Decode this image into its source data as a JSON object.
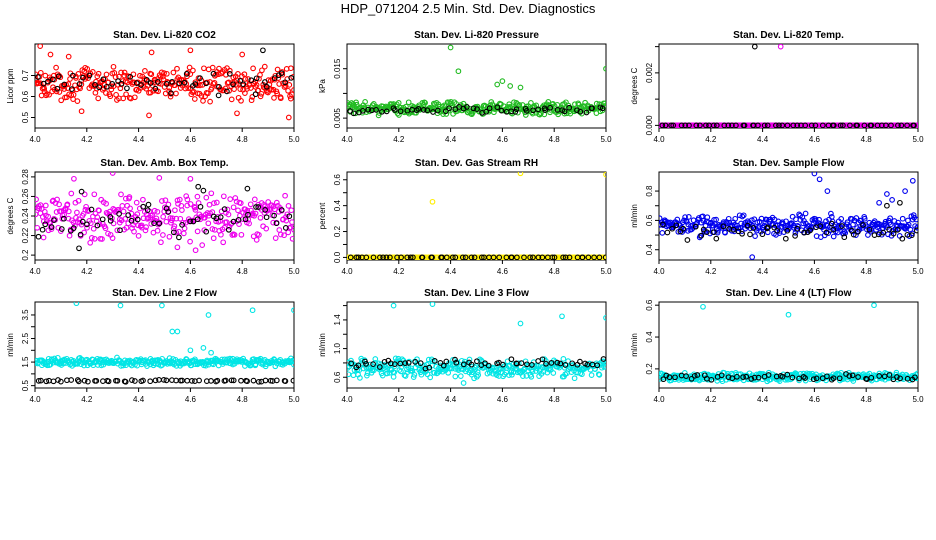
{
  "page_title": "HDP_071204  2.5 Min. Std. Dev. Diagnostics",
  "chart_data": [
    {
      "type": "scatter",
      "title": "Stan. Dev. Li-820 CO2",
      "xlabel": "",
      "ylabel": "Licor ppm",
      "xlim": [
        4.0,
        5.0
      ],
      "ylim": [
        0.45,
        0.85
      ],
      "xticks": [
        4.0,
        4.2,
        4.4,
        4.6,
        4.8,
        5.0
      ],
      "yticks": [
        0.5,
        0.6,
        0.7
      ],
      "colors": {
        "main": "#ff0000",
        "secondary": "#000000"
      },
      "series": [
        {
          "name": "main",
          "color": "#ff0000",
          "band": [
            0.57,
            0.75
          ],
          "n": 330,
          "x": [
            4.02,
            4.06,
            4.13,
            4.45,
            4.6,
            4.8,
            4.98,
            4.18,
            4.44,
            4.78
          ],
          "y": [
            0.84,
            0.8,
            0.79,
            0.81,
            0.82,
            0.8,
            0.5,
            0.53,
            0.51,
            0.52
          ]
        },
        {
          "name": "secondary",
          "color": "#000000",
          "band": [
            0.6,
            0.72
          ],
          "n": 55,
          "x": [
            4.88
          ],
          "y": [
            0.82
          ]
        }
      ]
    },
    {
      "type": "scatter",
      "title": "Stan. Dev. Li-820 Pressure",
      "xlabel": "",
      "ylabel": "kPa",
      "xlim": [
        4.0,
        5.0
      ],
      "ylim": [
        0.003,
        0.02
      ],
      "xticks": [
        4.0,
        4.2,
        4.4,
        4.6,
        4.8,
        5.0
      ],
      "yticks": [
        0.005,
        0.01,
        0.015
      ],
      "yticklabels": [
        "0.005",
        "",
        "0.015"
      ],
      "colors": {
        "main": "#22bb22",
        "secondary": "#000000"
      },
      "series": [
        {
          "name": "main",
          "color": "#22bb22",
          "band": [
            0.0055,
            0.0085
          ],
          "n": 330,
          "x": [
            4.4,
            4.43,
            4.6,
            4.58,
            5.0,
            4.63,
            4.67
          ],
          "y": [
            0.0193,
            0.0145,
            0.0125,
            0.0118,
            0.015,
            0.0115,
            0.0112
          ]
        },
        {
          "name": "secondary",
          "color": "#000000",
          "band": [
            0.0058,
            0.0075
          ],
          "n": 55,
          "x": [],
          "y": []
        }
      ]
    },
    {
      "type": "scatter",
      "title": "Stan. Dev. Li-820 Temp.",
      "xlabel": "",
      "ylabel": "degrees C",
      "xlim": [
        4.0,
        5.0
      ],
      "ylim": [
        -0.0001,
        0.0031
      ],
      "xticks": [
        4.0,
        4.2,
        4.4,
        4.6,
        4.8,
        5.0
      ],
      "yticks": [
        0.0,
        0.001,
        0.002,
        0.003
      ],
      "yticklabels": [
        "0.000",
        "",
        "0.002",
        ""
      ],
      "colors": {
        "main": "#ee00ee",
        "secondary": "#000000"
      },
      "series": [
        {
          "name": "main",
          "color": "#ee00ee",
          "band": [
            0.0,
            0.0
          ],
          "n": 330,
          "x": [
            4.47
          ],
          "y": [
            0.003
          ]
        },
        {
          "name": "secondary",
          "color": "#000000",
          "band": [
            0.0,
            0.0
          ],
          "n": 55,
          "x": [
            4.37
          ],
          "y": [
            0.003
          ]
        }
      ]
    },
    {
      "type": "scatter",
      "title": "Stan. Dev. Amb. Box Temp.",
      "xlabel": "",
      "ylabel": "degrees C",
      "xlim": [
        4.0,
        5.0
      ],
      "ylim": [
        0.195,
        0.285
      ],
      "xticks": [
        4.0,
        4.2,
        4.4,
        4.6,
        4.8,
        5.0
      ],
      "yticks": [
        0.2,
        0.22,
        0.24,
        0.26,
        0.28
      ],
      "colors": {
        "main": "#ee00ee",
        "secondary": "#000000"
      },
      "series": [
        {
          "name": "main",
          "color": "#ee00ee",
          "band": [
            0.21,
            0.265
          ],
          "n": 330,
          "x": [
            4.3,
            4.15,
            4.48,
            4.6,
            4.62,
            4.55
          ],
          "y": [
            0.284,
            0.278,
            0.279,
            0.278,
            0.205,
            0.208
          ]
        },
        {
          "name": "secondary",
          "color": "#000000",
          "band": [
            0.215,
            0.255
          ],
          "n": 55,
          "x": [
            4.63,
            4.82,
            4.65,
            4.17,
            4.18
          ],
          "y": [
            0.27,
            0.268,
            0.266,
            0.207,
            0.265
          ]
        }
      ]
    },
    {
      "type": "scatter",
      "title": "Stan. Dev. Gas Stream RH",
      "xlabel": "",
      "ylabel": "percent",
      "xlim": [
        4.0,
        5.0
      ],
      "ylim": [
        -0.02,
        0.66
      ],
      "xticks": [
        4.0,
        4.2,
        4.4,
        4.6,
        4.8,
        5.0
      ],
      "yticks": [
        0.0,
        0.1,
        0.2,
        0.3,
        0.4,
        0.5,
        0.6
      ],
      "yticklabels": [
        "0.0",
        "",
        "0.2",
        "",
        "0.4",
        "",
        "0.6"
      ],
      "colors": {
        "main": "#ffee00",
        "secondary": "#000000"
      },
      "series": [
        {
          "name": "main",
          "color": "#ffee00",
          "band": [
            0.0,
            0.0
          ],
          "n": 200,
          "x": [
            4.33,
            4.67,
            5.0,
            4.01
          ],
          "y": [
            0.43,
            0.65,
            0.64,
            0.0
          ]
        },
        {
          "name": "secondary",
          "color": "#000000",
          "band": [
            0.0,
            0.0
          ],
          "n": 55,
          "x": [],
          "y": []
        }
      ]
    },
    {
      "type": "scatter",
      "title": "Stan. Dev. Sample Flow",
      "xlabel": "",
      "ylabel": "ml/min",
      "xlim": [
        4.0,
        5.0
      ],
      "ylim": [
        0.33,
        0.93
      ],
      "xticks": [
        4.0,
        4.2,
        4.4,
        4.6,
        4.8,
        5.0
      ],
      "yticks": [
        0.4,
        0.5,
        0.6,
        0.7,
        0.8
      ],
      "yticklabels": [
        "0.4",
        "",
        "0.6",
        "",
        "0.8"
      ],
      "colors": {
        "main": "#0000ee",
        "secondary": "#000000"
      },
      "series": [
        {
          "name": "main",
          "color": "#0000ee",
          "band": [
            0.48,
            0.65
          ],
          "n": 330,
          "x": [
            4.6,
            4.62,
            4.98,
            4.95,
            4.85,
            4.88,
            4.9,
            4.36,
            4.65
          ],
          "y": [
            0.92,
            0.88,
            0.87,
            0.8,
            0.72,
            0.78,
            0.74,
            0.35,
            0.8
          ]
        },
        {
          "name": "secondary",
          "color": "#000000",
          "band": [
            0.45,
            0.6
          ],
          "n": 55,
          "x": [
            4.88,
            4.93
          ],
          "y": [
            0.7,
            0.72
          ]
        }
      ]
    },
    {
      "type": "scatter",
      "title": "Stan. Dev. Line 2 Flow",
      "xlabel": "",
      "ylabel": "ml/min",
      "xlim": [
        4.0,
        5.0
      ],
      "ylim": [
        0.4,
        4.05
      ],
      "xticks": [
        4.0,
        4.2,
        4.4,
        4.6,
        4.8,
        5.0
      ],
      "yticks": [
        0.5,
        1.0,
        1.5,
        2.0,
        2.5,
        3.0,
        3.5
      ],
      "yticklabels": [
        "0.5",
        "",
        "1.5",
        "",
        "2.5",
        "",
        "3.5"
      ],
      "colors": {
        "main": "#00e5e5",
        "secondary": "#000000"
      },
      "series": [
        {
          "name": "main",
          "color": "#00e5e5",
          "band": [
            1.3,
            1.7
          ],
          "n": 330,
          "x": [
            4.16,
            4.33,
            4.49,
            4.55,
            4.53,
            4.67,
            4.84,
            5.0,
            4.6,
            4.65,
            4.68
          ],
          "y": [
            4.0,
            3.9,
            3.9,
            2.8,
            2.8,
            3.5,
            3.7,
            3.7,
            2.0,
            2.1,
            1.9
          ]
        },
        {
          "name": "secondary",
          "color": "#000000",
          "band": [
            0.66,
            0.76
          ],
          "n": 60,
          "x": [],
          "y": []
        }
      ]
    },
    {
      "type": "scatter",
      "title": "Stan. Dev. Line 3 Flow",
      "xlabel": "",
      "ylabel": "ml/min",
      "xlim": [
        4.0,
        5.0
      ],
      "ylim": [
        0.45,
        1.65
      ],
      "xticks": [
        4.0,
        4.2,
        4.4,
        4.6,
        4.8,
        5.0
      ],
      "yticks": [
        0.6,
        0.8,
        1.0,
        1.2,
        1.4,
        1.6
      ],
      "yticklabels": [
        "0.6",
        "",
        "1.0",
        "",
        "1.4",
        ""
      ],
      "colors": {
        "main": "#00e5e5",
        "secondary": "#000000"
      },
      "series": [
        {
          "name": "main",
          "color": "#00e5e5",
          "band": [
            0.58,
            0.88
          ],
          "n": 330,
          "x": [
            4.18,
            4.33,
            4.67,
            4.83,
            5.0,
            4.45
          ],
          "y": [
            1.6,
            1.62,
            1.35,
            1.45,
            1.43,
            0.52
          ]
        },
        {
          "name": "secondary",
          "color": "#000000",
          "band": [
            0.72,
            0.86
          ],
          "n": 55,
          "x": [],
          "y": []
        }
      ]
    },
    {
      "type": "scatter",
      "title": "Stan. Dev. Line 4 (LT) Flow",
      "xlabel": "",
      "ylabel": "ml/min",
      "xlim": [
        4.0,
        5.0
      ],
      "ylim": [
        0.08,
        0.62
      ],
      "xticks": [
        4.0,
        4.2,
        4.4,
        4.6,
        4.8,
        5.0
      ],
      "yticks": [
        0.2,
        0.4,
        0.6
      ],
      "colors": {
        "main": "#00e5e5",
        "secondary": "#000000"
      },
      "series": [
        {
          "name": "main",
          "color": "#00e5e5",
          "band": [
            0.12,
            0.18
          ],
          "n": 330,
          "x": [
            4.17,
            4.5,
            4.83
          ],
          "y": [
            0.59,
            0.54,
            0.6
          ]
        },
        {
          "name": "secondary",
          "color": "#000000",
          "band": [
            0.13,
            0.17
          ],
          "n": 55,
          "x": [],
          "y": []
        }
      ]
    }
  ]
}
